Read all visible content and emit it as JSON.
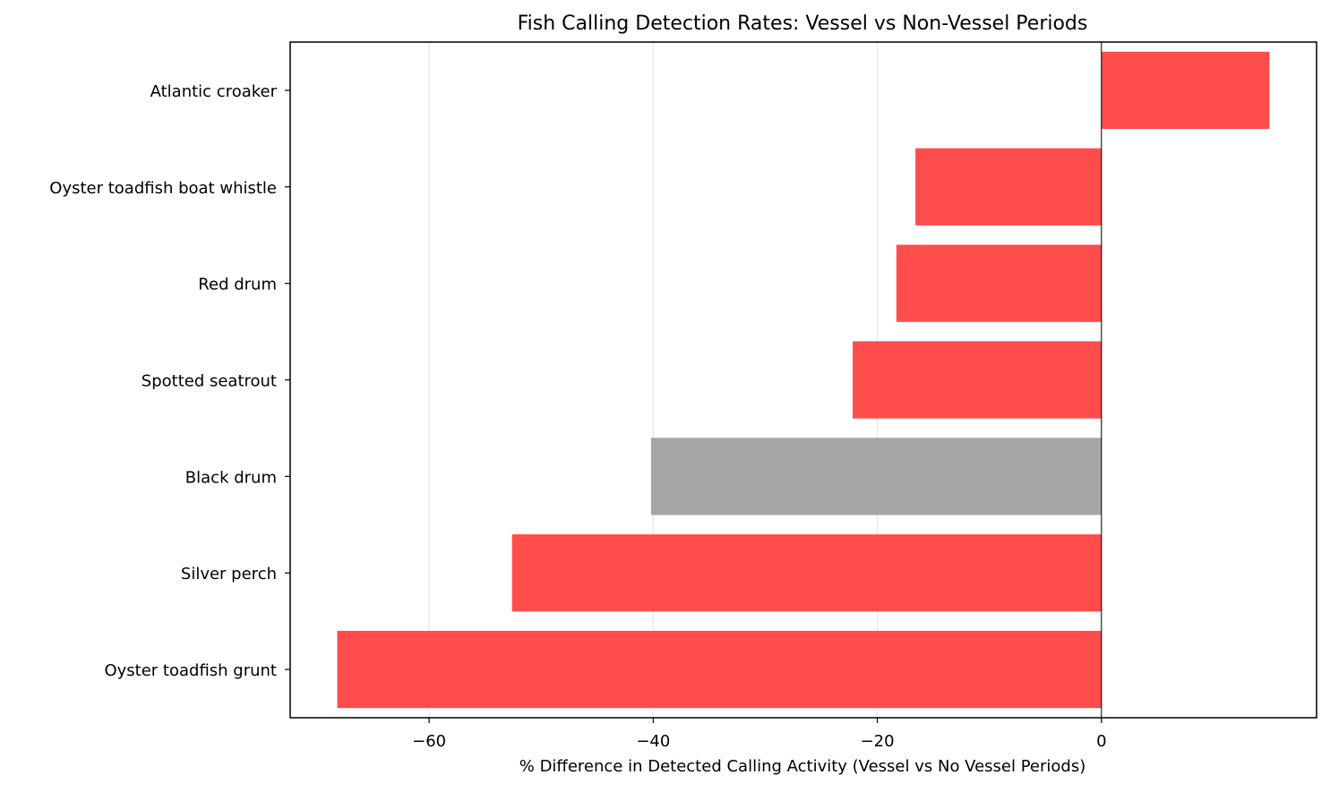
{
  "chart_data": {
    "type": "bar",
    "orientation": "horizontal",
    "title": "Fish Calling Detection Rates: Vessel vs Non-Vessel Periods",
    "xlabel": "% Difference in Detected Calling Activity (Vessel vs No Vessel Periods)",
    "ylabel": "",
    "categories": [
      "Oyster toadfish grunt",
      "Silver perch",
      "Black drum",
      "Spotted seatrout",
      "Red drum",
      "Oyster toadfish boat whistle",
      "Atlantic croaker"
    ],
    "values": [
      -68.2,
      -52.6,
      -40.2,
      -22.2,
      -18.3,
      -16.6,
      15.0
    ],
    "bar_colors": [
      "#ff4d4d",
      "#ff4d4d",
      "#a6a6a6",
      "#ff4d4d",
      "#ff4d4d",
      "#ff4d4d",
      "#ff4d4d"
    ],
    "xlim": [
      -72.4,
      19.2
    ],
    "xticks": [
      -60,
      -40,
      -20,
      0
    ],
    "xtick_labels": [
      "−60",
      "−40",
      "−20",
      "0"
    ],
    "grid": "x-axis vertical lines",
    "zero_line": true,
    "legend": "none",
    "colors": {
      "highlight": "#ff4d4d",
      "neutral": "#a6a6a6",
      "grid": "#e6e6e6",
      "axis": "#000000"
    }
  }
}
